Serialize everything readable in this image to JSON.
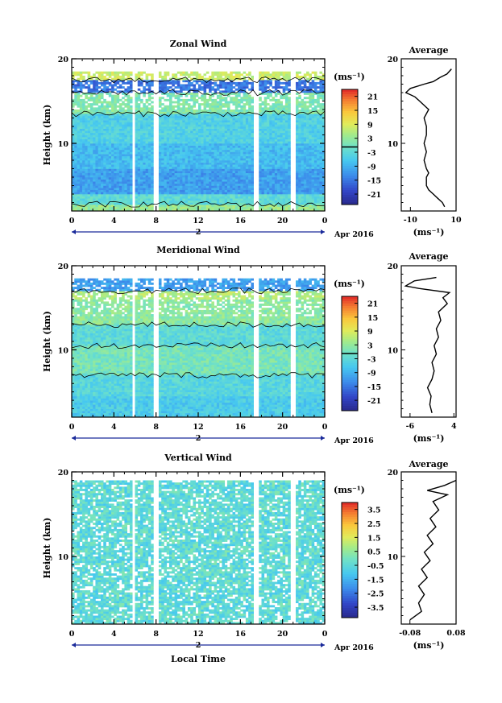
{
  "date_label": "Apr 2016",
  "day_label": "2",
  "xlabel_main": "Local Time",
  "ylabel": "Height (km)",
  "unit": "(ms⁻¹)",
  "avg_title": "Average",
  "chart_data": [
    {
      "type": "heatmap",
      "title": "Zonal Wind",
      "xlabel": "Local Time",
      "ylabel": "Height (km)",
      "x_ticks": [
        "0",
        "4",
        "8",
        "12",
        "16",
        "20",
        "0"
      ],
      "y_ticks": [
        "10",
        "20"
      ],
      "xlim": [
        0,
        24
      ],
      "ylim": [
        2,
        20
      ],
      "colorbar": {
        "unit": "(ms⁻¹)",
        "ticks": [
          "21",
          "15",
          "9",
          "3",
          "-3",
          "-9",
          "-15",
          "-21"
        ],
        "range": [
          -24,
          24
        ]
      },
      "data_gaps_hours": [
        5.8,
        8.0,
        17.5,
        21.0
      ],
      "contour_line": "zero-wind contours (black)",
      "layers_km": [
        {
          "height": [
            2.0,
            2.8
          ],
          "value": 4
        },
        {
          "height": [
            2.8,
            4.0
          ],
          "value": -2
        },
        {
          "height": [
            4.0,
            7.0
          ],
          "value": -10
        },
        {
          "height": [
            7.0,
            10.0
          ],
          "value": -7
        },
        {
          "height": [
            10.0,
            13.5
          ],
          "value": -4
        },
        {
          "height": [
            13.5,
            16.0
          ],
          "value": 2
        },
        {
          "height": [
            16.0,
            17.5
          ],
          "value": -14
        },
        {
          "height": [
            17.5,
            18.5
          ],
          "value": 8
        }
      ]
    },
    {
      "type": "line",
      "title": "Average",
      "xlabel": "(ms⁻¹)",
      "x_ticks": [
        "-10",
        "10"
      ],
      "xlim": [
        -14,
        10
      ],
      "y_ticks": [
        "10",
        "20"
      ],
      "ylim": [
        2,
        20
      ],
      "points": [
        [
          5,
          2.5
        ],
        [
          4,
          3
        ],
        [
          2,
          3.5
        ],
        [
          0,
          4
        ],
        [
          -2,
          4.5
        ],
        [
          -3,
          5
        ],
        [
          -3,
          6
        ],
        [
          -2,
          6.5
        ],
        [
          -3,
          7
        ],
        [
          -4,
          8
        ],
        [
          -3,
          9
        ],
        [
          -4,
          10
        ],
        [
          -3,
          11
        ],
        [
          -3,
          12
        ],
        [
          -4,
          13
        ],
        [
          -2,
          14
        ],
        [
          -6,
          15
        ],
        [
          -8,
          15.5
        ],
        [
          -12,
          16
        ],
        [
          -10,
          16.5
        ],
        [
          -4,
          17
        ],
        [
          0,
          17.3
        ],
        [
          3,
          17.8
        ],
        [
          6,
          18.2
        ],
        [
          8,
          18.8
        ]
      ]
    },
    {
      "type": "heatmap",
      "title": "Meridional Wind",
      "xlabel": "Local Time",
      "ylabel": "Height (km)",
      "x_ticks": [
        "0",
        "4",
        "8",
        "12",
        "16",
        "20",
        "0"
      ],
      "y_ticks": [
        "10",
        "20"
      ],
      "xlim": [
        0,
        24
      ],
      "ylim": [
        2,
        20
      ],
      "colorbar": {
        "unit": "(ms⁻¹)",
        "ticks": [
          "21",
          "15",
          "9",
          "3",
          "-3",
          "-9",
          "-15",
          "-21"
        ],
        "range": [
          -24,
          24
        ]
      },
      "data_gaps_hours": [
        5.8,
        8.0,
        17.5,
        21.0
      ],
      "contour_line": "zero-wind contours (black)",
      "layers_km": [
        {
          "height": [
            2.0,
            4.5
          ],
          "value": -5
        },
        {
          "height": [
            4.5,
            7.0
          ],
          "value": -3
        },
        {
          "height": [
            7.0,
            10.5
          ],
          "value": 1
        },
        {
          "height": [
            10.5,
            13.0
          ],
          "value": -2
        },
        {
          "height": [
            13.0,
            16.0
          ],
          "value": 3
        },
        {
          "height": [
            16.0,
            17.0
          ],
          "value": 6
        },
        {
          "height": [
            17.0,
            18.5
          ],
          "value": -10
        }
      ]
    },
    {
      "type": "line",
      "title": "Average",
      "xlabel": "(ms⁻¹)",
      "x_ticks": [
        "-6",
        "4"
      ],
      "xlim": [
        -8,
        4.5
      ],
      "y_ticks": [
        "10",
        "20"
      ],
      "ylim": [
        2,
        20
      ],
      "points": [
        [
          -1,
          2.5
        ],
        [
          -1.5,
          3.5
        ],
        [
          -1.2,
          4.5
        ],
        [
          -2,
          5.5
        ],
        [
          -1,
          6.5
        ],
        [
          -0.5,
          7.5
        ],
        [
          -1,
          8.5
        ],
        [
          0,
          9.5
        ],
        [
          -0.5,
          10.5
        ],
        [
          0.5,
          11.5
        ],
        [
          0,
          12.5
        ],
        [
          1,
          13.5
        ],
        [
          0.5,
          14.5
        ],
        [
          2.5,
          15.5
        ],
        [
          1.5,
          16.2
        ],
        [
          3,
          16.8
        ],
        [
          -4,
          17.3
        ],
        [
          -7,
          17.6
        ],
        [
          -5,
          18.2
        ],
        [
          0,
          18.6
        ]
      ]
    },
    {
      "type": "heatmap",
      "title": "Vertical Wind",
      "xlabel": "Local Time",
      "ylabel": "Height (km)",
      "x_ticks": [
        "0",
        "4",
        "8",
        "12",
        "16",
        "20",
        "0"
      ],
      "y_ticks": [
        "10",
        "20"
      ],
      "xlim": [
        0,
        24
      ],
      "ylim": [
        2,
        20
      ],
      "colorbar": {
        "unit": "(ms⁻¹)",
        "ticks": [
          "3.5",
          "2.5",
          "1.5",
          "0.5",
          "-0.5",
          "-1.5",
          "-2.5",
          "-3.5"
        ],
        "range": [
          -4,
          4
        ]
      },
      "data_gaps_hours": [
        5.8,
        8.0,
        17.5,
        21.0
      ],
      "typical_value": -0.3
    },
    {
      "type": "line",
      "title": "Average",
      "xlabel": "(ms⁻¹)",
      "x_ticks": [
        "-0.08",
        "0.08"
      ],
      "xlim": [
        -0.11,
        0.08
      ],
      "y_ticks": [
        "10",
        "20"
      ],
      "ylim": [
        2,
        20
      ],
      "points": [
        [
          -0.08,
          2.5
        ],
        [
          -0.04,
          3.5
        ],
        [
          -0.05,
          4.5
        ],
        [
          -0.03,
          5.5
        ],
        [
          -0.05,
          6.5
        ],
        [
          -0.02,
          7.5
        ],
        [
          -0.04,
          8.5
        ],
        [
          -0.01,
          9.5
        ],
        [
          -0.03,
          10.5
        ],
        [
          0.0,
          11.5
        ],
        [
          -0.02,
          12.5
        ],
        [
          0.01,
          13.5
        ],
        [
          -0.01,
          14.5
        ],
        [
          0.02,
          15.5
        ],
        [
          0.0,
          16.5
        ],
        [
          0.05,
          17.3
        ],
        [
          -0.02,
          17.8
        ],
        [
          0.04,
          18.4
        ],
        [
          0.08,
          19.0
        ]
      ]
    }
  ]
}
